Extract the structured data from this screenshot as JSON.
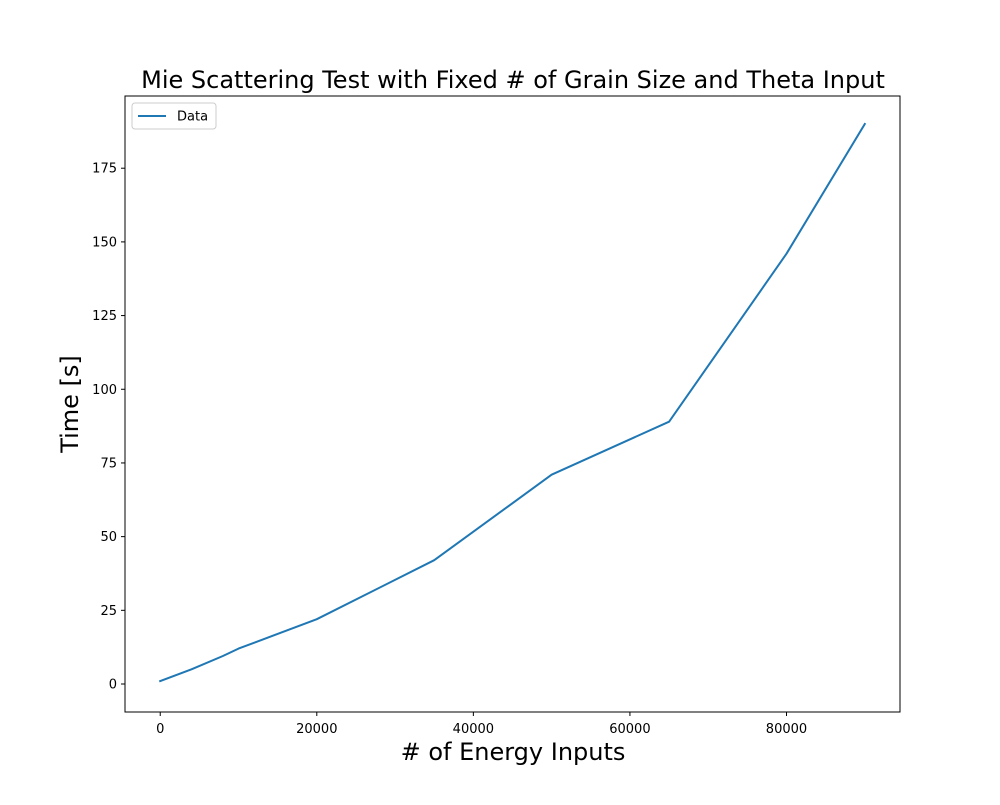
{
  "chart_data": {
    "type": "line",
    "title": "Mie Scattering Test with Fixed # of Grain Size and Theta Input",
    "xlabel": "# of Energy Inputs",
    "ylabel": "Time [s]",
    "xlim": [
      -4500,
      94500
    ],
    "ylim": [
      -9.5,
      199.5
    ],
    "xticks": [
      0,
      20000,
      40000,
      60000,
      80000
    ],
    "yticks": [
      0,
      25,
      50,
      75,
      100,
      125,
      150,
      175
    ],
    "grid": false,
    "legend_position": "top-left",
    "series": [
      {
        "name": "Data",
        "color": "#1f77b4",
        "x": [
          0,
          4000,
          8000,
          10000,
          20000,
          35000,
          50000,
          65000,
          80000,
          90000
        ],
        "y": [
          1,
          5,
          9.5,
          12,
          22,
          42,
          71,
          89,
          146,
          190
        ]
      }
    ]
  }
}
